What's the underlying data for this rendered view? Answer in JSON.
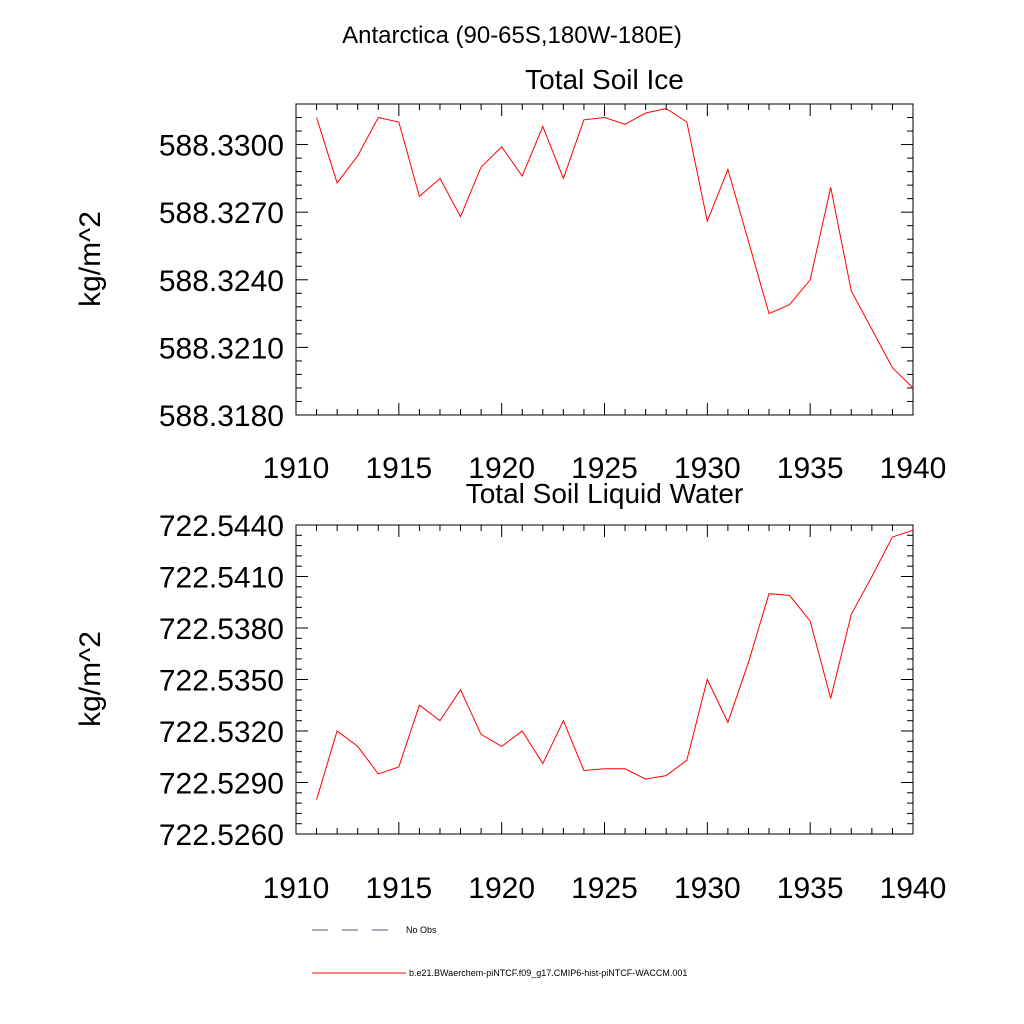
{
  "figure": {
    "suptitle": "Antarctica (90-65S,180W-180E)"
  },
  "chart_data": [
    {
      "type": "line",
      "title": "Total Soil Ice",
      "xlabel": "",
      "ylabel": "kg/m^2",
      "xlim": [
        1910,
        1940
      ],
      "ylim": [
        588.318,
        588.3318
      ],
      "xticks": [
        "1910",
        "1915",
        "1920",
        "1925",
        "1930",
        "1935",
        "1940"
      ],
      "yticks": [
        "588.3180",
        "588.3210",
        "588.3240",
        "588.3270",
        "588.3300"
      ],
      "grid": false,
      "series": [
        {
          "name": "b.e21.BWaerchem-piNTCF.f09_g17.CMIP6-hist-piNTCF-WACCM.001",
          "color": "#ff0000",
          "x": [
            1911,
            1912,
            1913,
            1914,
            1915,
            1916,
            1917,
            1918,
            1919,
            1920,
            1921,
            1922,
            1923,
            1924,
            1925,
            1926,
            1927,
            1928,
            1929,
            1930,
            1931,
            1932,
            1933,
            1934,
            1935,
            1936,
            1937,
            1938,
            1939,
            1940
          ],
          "y": [
            588.3312,
            588.3283,
            588.3295,
            588.3312,
            588.331,
            588.3277,
            588.3285,
            588.3268,
            588.329,
            588.3299,
            588.3286,
            588.3308,
            588.3285,
            588.3311,
            588.3312,
            588.3309,
            588.3314,
            588.3316,
            588.331,
            588.3266,
            588.3289,
            588.3257,
            588.3225,
            588.3229,
            588.324,
            588.3281,
            588.3235,
            588.3218,
            588.3201,
            588.3192
          ]
        }
      ]
    },
    {
      "type": "line",
      "title": "Total Soil Liquid Water",
      "xlabel": "",
      "ylabel": "kg/m^2",
      "xlim": [
        1910,
        1940
      ],
      "ylim": [
        722.526,
        722.544
      ],
      "xticks": [
        "1910",
        "1915",
        "1920",
        "1925",
        "1930",
        "1935",
        "1940"
      ],
      "yticks": [
        "722.5260",
        "722.5290",
        "722.5320",
        "722.5350",
        "722.5380",
        "722.5410",
        "722.5440"
      ],
      "grid": false,
      "series": [
        {
          "name": "b.e21.BWaerchem-piNTCF.f09_g17.CMIP6-hist-piNTCF-WACCM.001",
          "color": "#ff0000",
          "x": [
            1911,
            1912,
            1913,
            1914,
            1915,
            1916,
            1917,
            1918,
            1919,
            1920,
            1921,
            1922,
            1923,
            1924,
            1925,
            1926,
            1927,
            1928,
            1929,
            1930,
            1931,
            1932,
            1933,
            1934,
            1935,
            1936,
            1937,
            1938,
            1939,
            1940
          ],
          "y": [
            722.528,
            722.532,
            722.5311,
            722.5295,
            722.5299,
            722.5335,
            722.5326,
            722.5344,
            722.5318,
            722.5311,
            722.532,
            722.5301,
            722.5326,
            722.5297,
            722.5298,
            722.5298,
            722.5292,
            722.5294,
            722.5303,
            722.535,
            722.5325,
            722.536,
            722.54,
            722.5399,
            722.5384,
            722.5339,
            722.5388,
            722.541,
            722.5433,
            722.5437
          ]
        }
      ]
    }
  ],
  "legend": {
    "placement": "bottom",
    "items": [
      {
        "label": "No Obs",
        "color": "#555577",
        "style": "dashed"
      },
      {
        "label": "b.e21.BWaerchem-piNTCF.f09_g17.CMIP6-hist-piNTCF-WACCM.001",
        "color": "#ff0000",
        "style": "solid"
      }
    ]
  }
}
